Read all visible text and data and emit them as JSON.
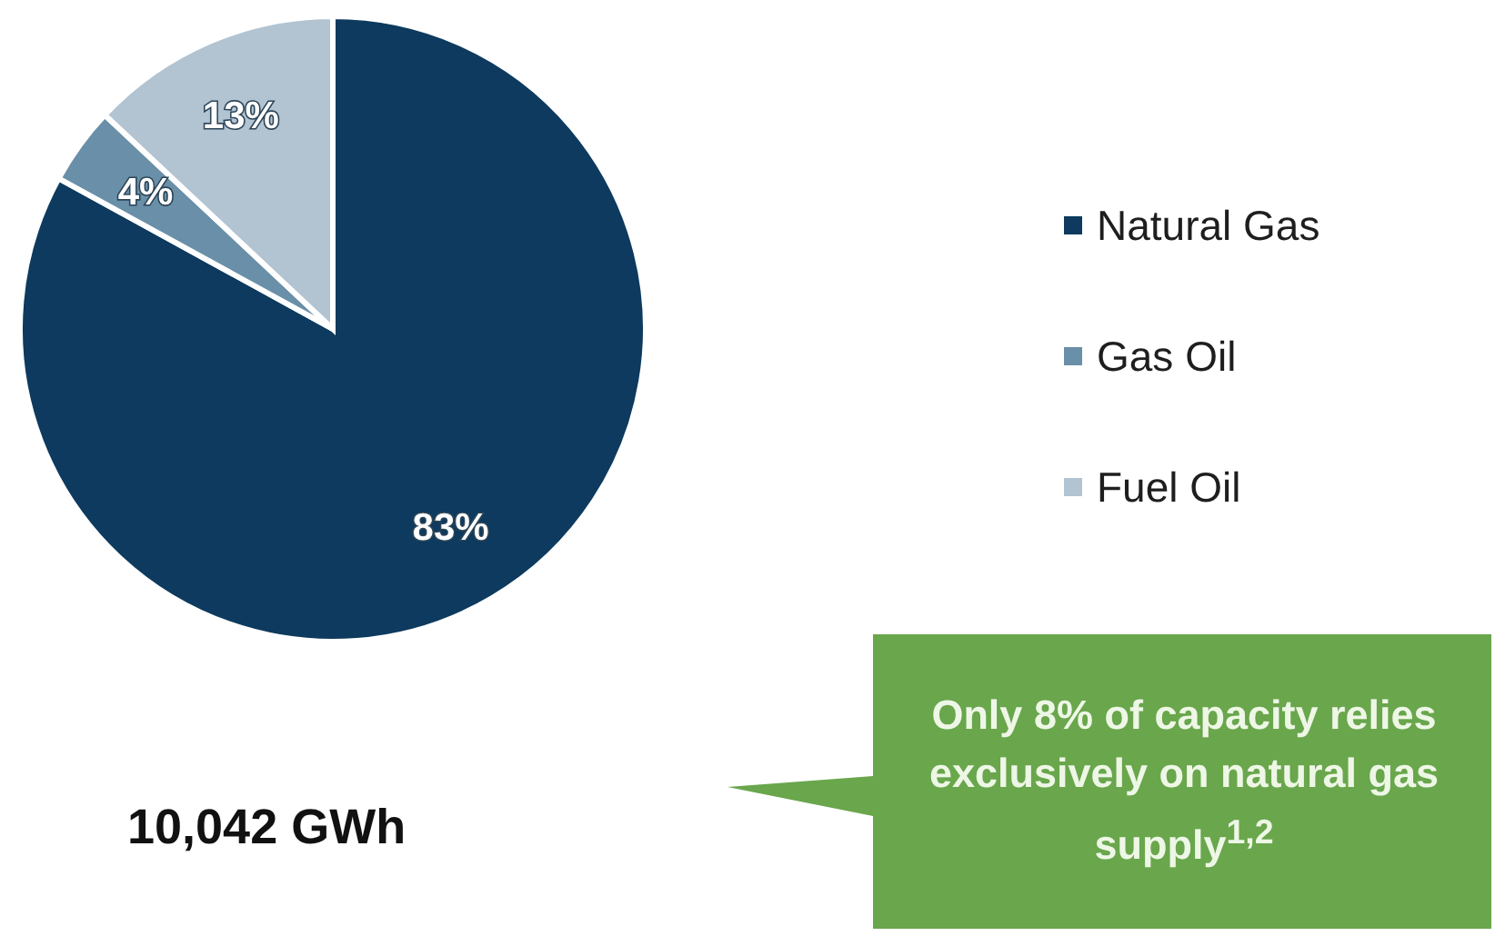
{
  "chart_data": {
    "type": "pie",
    "categories": [
      "Natural Gas",
      "Gas Oil",
      "Fuel Oil"
    ],
    "values": [
      83,
      4,
      13
    ],
    "value_labels": [
      "83%",
      "4%",
      "13%"
    ],
    "colors": [
      "#0d3a5e",
      "#6a8fa8",
      "#b2c3d2"
    ],
    "legend": "right",
    "annotations": [
      "10,042 GWh",
      "Only 8% of capacity relies exclusively on natural gas supply$^{1,2}$"
    ]
  }
}
